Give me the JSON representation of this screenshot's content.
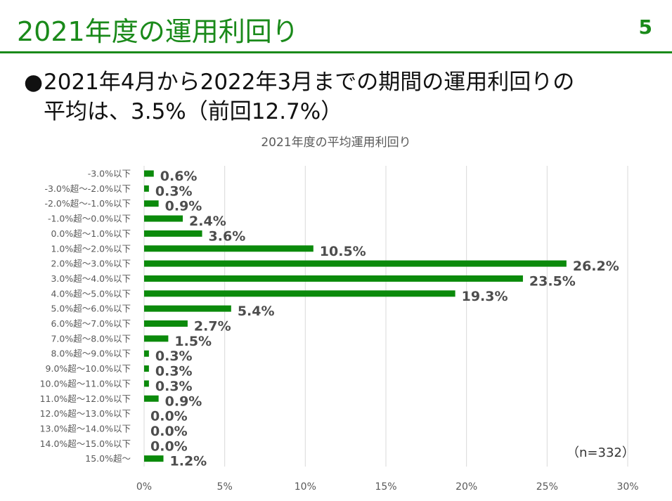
{
  "slide": {
    "title": "2021年度の運用利回り",
    "page_number": "5",
    "bullet_line1": "2021年4月から2022年3月までの期間の運用利回りの",
    "bullet_line2": "平均は、3.5%（前回12.7%）",
    "note": "（n=332）"
  },
  "chart_data": {
    "type": "bar",
    "orientation": "horizontal",
    "title": "2021年度の平均運用利回り",
    "xlabel": "",
    "ylabel": "",
    "xlim": [
      0,
      30
    ],
    "x_ticks": [
      "0%",
      "5%",
      "10%",
      "15%",
      "20%",
      "25%",
      "30%"
    ],
    "grid": true,
    "bar_color": "#0b8a0b",
    "categories": [
      "-3.0%以下",
      "-3.0%超～-2.0%以下",
      "-2.0%超～-1.0%以下",
      "-1.0%超～0.0%以下",
      "0.0%超～1.0%以下",
      "1.0%超～2.0%以下",
      "2.0%超～3.0%以下",
      "3.0%超～4.0%以下",
      "4.0%超～5.0%以下",
      "5.0%超～6.0%以下",
      "6.0%超～7.0%以下",
      "7.0%超～8.0%以下",
      "8.0%超～9.0%以下",
      "9.0%超～10.0%以下",
      "10.0%超～11.0%以下",
      "11.0%超～12.0%以下",
      "12.0%超～13.0%以下",
      "13.0%超～14.0%以下",
      "14.0%超～15.0%以下",
      "15.0%超～"
    ],
    "values": [
      0.6,
      0.3,
      0.9,
      2.4,
      3.6,
      10.5,
      26.2,
      23.5,
      19.3,
      5.4,
      2.7,
      1.5,
      0.3,
      0.3,
      0.3,
      0.9,
      0.0,
      0.0,
      0.0,
      1.2
    ],
    "data_labels": [
      "0.6%",
      "0.3%",
      "0.9%",
      "2.4%",
      "3.6%",
      "10.5%",
      "26.2%",
      "23.5%",
      "19.3%",
      "5.4%",
      "2.7%",
      "1.5%",
      "0.3%",
      "0.3%",
      "0.3%",
      "0.9%",
      "0.0%",
      "0.0%",
      "0.0%",
      "1.2%"
    ]
  }
}
